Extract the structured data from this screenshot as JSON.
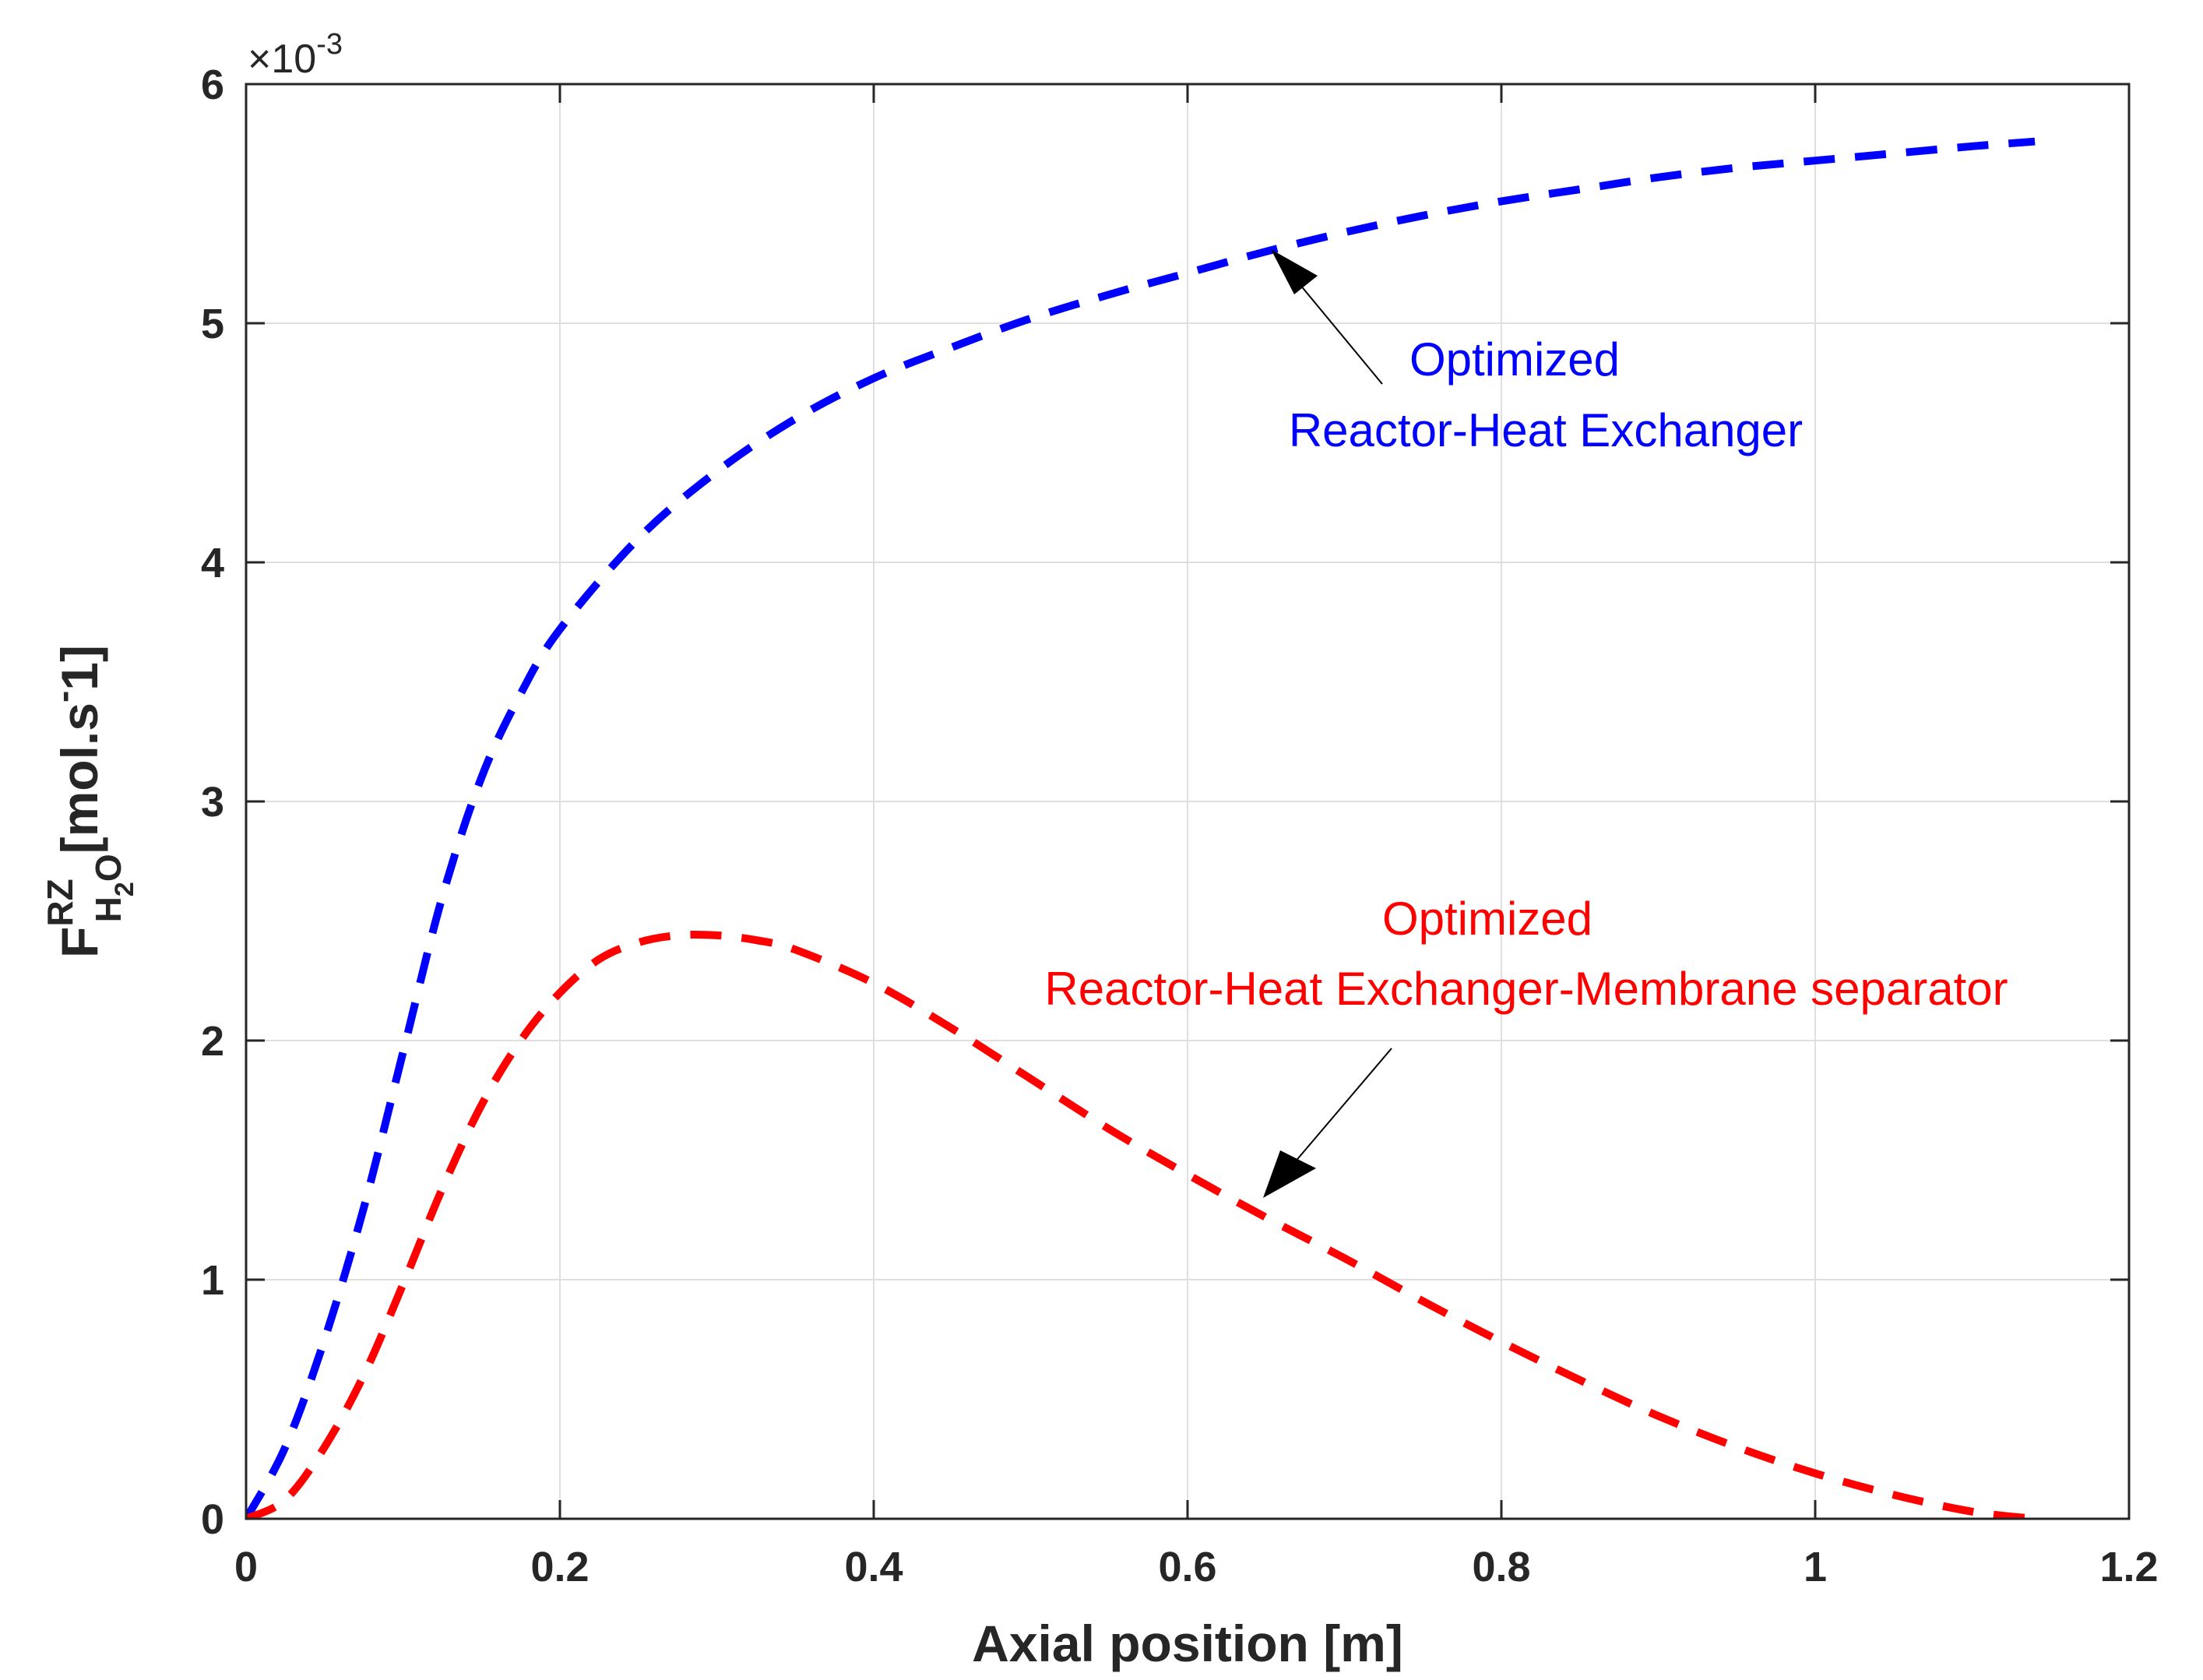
{
  "chart_data": {
    "type": "line",
    "xlabel": "Axial position [m]",
    "ylabel": {
      "symbol": "F",
      "superscript": "RZ",
      "subscript_base": "H",
      "subscript_index": "2",
      "subscript_tail": "O",
      "unit": "[mol.s",
      "unit_exp": "-",
      "unit_end": "1]"
    },
    "y_multiplier": "×10",
    "y_multiplier_exp": "-3",
    "xlim": [
      0,
      1.2
    ],
    "ylim": [
      0,
      6
    ],
    "x_ticks": [
      "0",
      "0.2",
      "0.4",
      "0.6",
      "0.8",
      "1",
      "1.2"
    ],
    "y_ticks": [
      "0",
      "1",
      "2",
      "3",
      "4",
      "5",
      "6"
    ],
    "grid": true,
    "series": [
      {
        "color": "#0000ff",
        "style": "dashed",
        "x": [
          0,
          0.025,
          0.05,
          0.075,
          0.1,
          0.125,
          0.15,
          0.175,
          0.2,
          0.25,
          0.3,
          0.35,
          0.4,
          0.45,
          0.5,
          0.55,
          0.6,
          0.65,
          0.7,
          0.75,
          0.8,
          0.85,
          0.9,
          0.95,
          1.0,
          1.05,
          1.1,
          1.14
        ],
        "y": [
          0,
          0.3,
          0.75,
          1.3,
          1.95,
          2.6,
          3.1,
          3.45,
          3.72,
          4.1,
          4.38,
          4.6,
          4.77,
          4.9,
          5.02,
          5.12,
          5.21,
          5.3,
          5.38,
          5.45,
          5.51,
          5.56,
          5.61,
          5.65,
          5.68,
          5.71,
          5.74,
          5.76
        ]
      },
      {
        "color": "#ff0000",
        "style": "dashed",
        "x": [
          0,
          0.025,
          0.05,
          0.075,
          0.1,
          0.125,
          0.15,
          0.175,
          0.2,
          0.225,
          0.25,
          0.275,
          0.3,
          0.325,
          0.35,
          0.4,
          0.45,
          0.5,
          0.55,
          0.6,
          0.65,
          0.7,
          0.75,
          0.8,
          0.85,
          0.9,
          0.95,
          1.0,
          1.05,
          1.1,
          1.14
        ],
        "y": [
          0,
          0.08,
          0.3,
          0.6,
          0.98,
          1.38,
          1.73,
          2.0,
          2.2,
          2.34,
          2.41,
          2.44,
          2.44,
          2.42,
          2.38,
          2.24,
          2.05,
          1.84,
          1.63,
          1.44,
          1.26,
          1.09,
          0.91,
          0.74,
          0.58,
          0.43,
          0.3,
          0.19,
          0.1,
          0.03,
          0.0
        ]
      }
    ],
    "annotations": [
      {
        "lines": [
          "Optimized",
          "Reactor-Heat Exchanger"
        ],
        "color": "#0000ff",
        "arrow_to": [
          0.65,
          5.3
        ]
      },
      {
        "lines": [
          "Optimized",
          "Reactor-Heat Exchanger-Membrane separator"
        ],
        "color": "#ff0000",
        "arrow_to": [
          0.65,
          1.26
        ]
      }
    ]
  }
}
